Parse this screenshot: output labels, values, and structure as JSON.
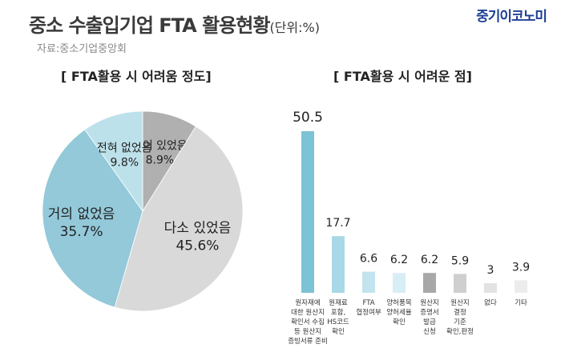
{
  "title": "중소 수출입기업 FTA 활용현황",
  "unit": "(단위:%)",
  "brand": "중기이코노미",
  "source": "자료:중소기업중앙회",
  "chart_data": [
    {
      "type": "pie",
      "title": "[ FTA활용 시 어려움 정도]",
      "slices": [
        {
          "label": "많이 있었음",
          "value": 8.9,
          "value_label": "8.9%",
          "color": "#b0b0b0"
        },
        {
          "label": "다소 있었음",
          "value": 45.6,
          "value_label": "45.6%",
          "color": "#d9d9d9"
        },
        {
          "label": "거의 없었음",
          "value": 35.7,
          "value_label": "35.7%",
          "color": "#93c9d9"
        },
        {
          "label": "전혀 없었음",
          "value": 9.8,
          "value_label": "9.8%",
          "color": "#bde1ea"
        }
      ],
      "start_angle_deg": 0,
      "direction": "clockwise"
    },
    {
      "type": "bar",
      "title": "[ FTA활용 시 어려운 점]",
      "categories": [
        "원자재에 대한 원산지 확인서 수집 등 원산지 증빙서류 준비",
        "원재료 포함, HS코드 확인",
        "FTA 협정여부",
        "양허품목 양허세율 확인",
        "원산지 증명서 발급 신청",
        "원산지 결정 기준 확인,판정",
        "없다",
        "기타"
      ],
      "category_lines": [
        [
          "원자재에",
          "대한 원산지",
          "확인서 수집",
          "등 원산지",
          "증빙서류 준비"
        ],
        [
          "원재료",
          "포함,",
          "HS코드",
          "확인"
        ],
        [
          "FTA",
          "협정여부"
        ],
        [
          "양허품목",
          "양허세율",
          "확인"
        ],
        [
          "원산지",
          "증명서",
          "발급",
          "신청"
        ],
        [
          "원산지",
          "결정",
          "기준",
          "확인,판정"
        ],
        [
          "없다"
        ],
        [
          "기타"
        ]
      ],
      "values": [
        50.5,
        17.7,
        6.6,
        6.2,
        6.2,
        5.9,
        3,
        3.9
      ],
      "value_labels": [
        "50.5",
        "17.7",
        "6.6",
        "6.2",
        "6.2",
        "5.9",
        "3",
        "3.9"
      ],
      "colors": [
        "#7cc3d6",
        "#a9d8e6",
        "#c2e4ee",
        "#d8eef5",
        "#a8a8a8",
        "#cfcfcf",
        "#e2e2e2",
        "#ececec"
      ],
      "ylim": [
        0,
        55
      ]
    }
  ]
}
